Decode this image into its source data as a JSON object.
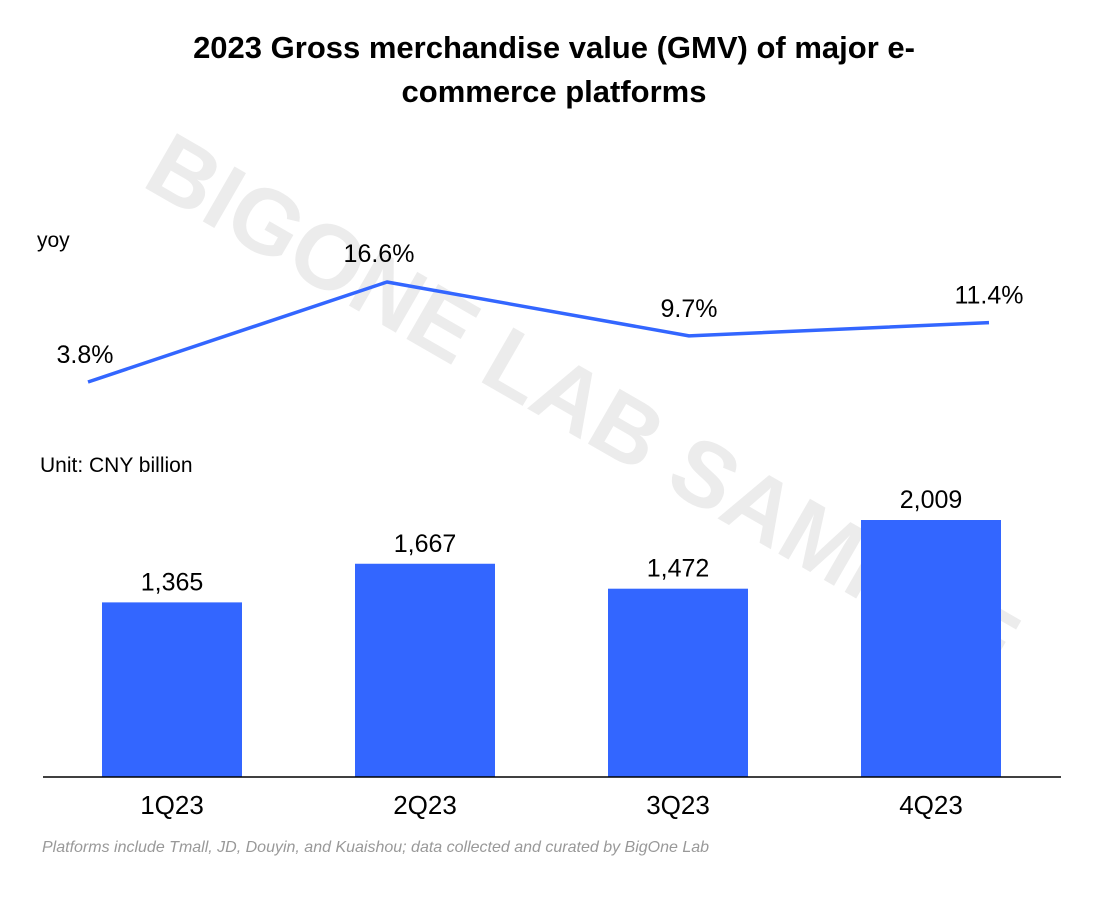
{
  "chart": {
    "title_line1": "2023 Gross merchandise value (GMV) of major e-",
    "title_line2": "commerce platforms",
    "line_label": "yoy",
    "bar_unit_label": "Unit: CNY billion",
    "source_note": "Platforms include Tmall, JD, Douyin, and Kuaishou; data collected and curated by BigOne Lab",
    "watermark": "BIGONE LAB SAMPLE"
  },
  "colors": {
    "bar": "#3366ff",
    "line": "#3366ff",
    "text": "#000000",
    "source": "#999999",
    "axis": "#000000",
    "watermark": "#ececec"
  },
  "chart_data": [
    {
      "type": "line",
      "categories": [
        "1Q23",
        "2Q23",
        "3Q23",
        "4Q23"
      ],
      "series": [
        {
          "name": "yoy",
          "values": [
            3.8,
            16.6,
            9.7,
            11.4
          ],
          "labels": [
            "3.8%",
            "16.6%",
            "9.7%",
            "11.4%"
          ]
        }
      ],
      "ylabel": "yoy",
      "grid": false
    },
    {
      "type": "bar",
      "categories": [
        "1Q23",
        "2Q23",
        "3Q23",
        "4Q23"
      ],
      "values": [
        1365,
        1667,
        1472,
        2009
      ],
      "labels": [
        "1,365",
        "1,667",
        "1,472",
        "2,009"
      ],
      "ylabel": "Unit: CNY billion",
      "ylim": [
        0,
        2009
      ],
      "grid": false,
      "legend": "none"
    }
  ]
}
